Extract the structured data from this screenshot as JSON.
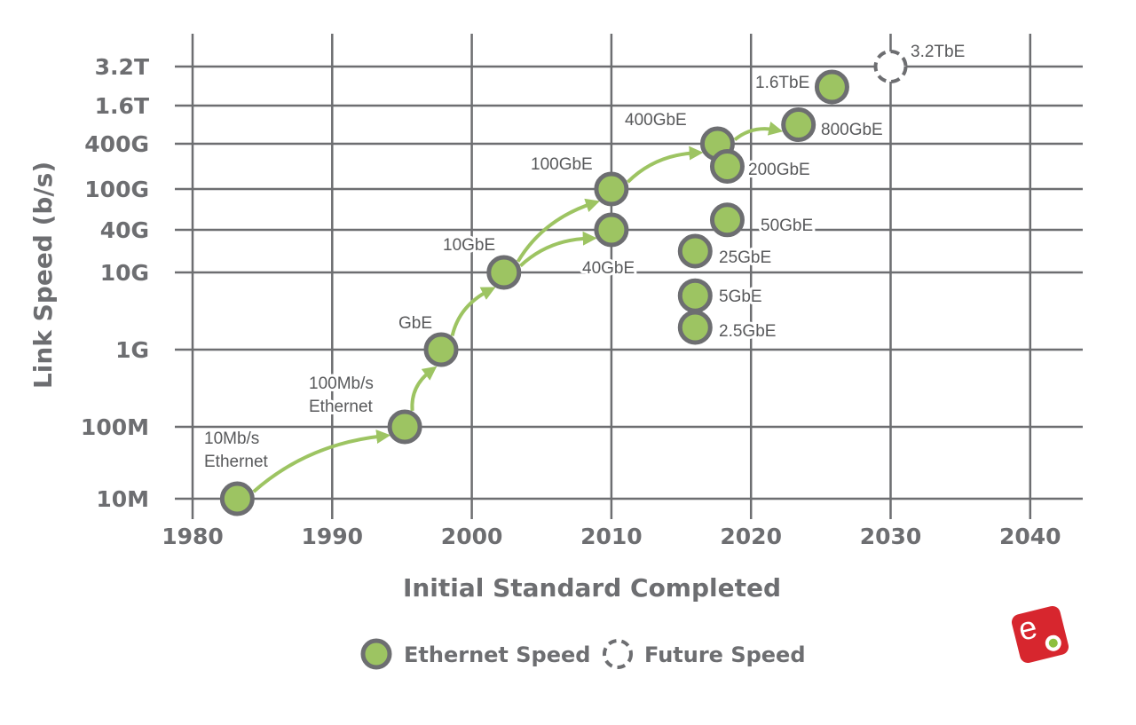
{
  "chart_data": {
    "type": "scatter",
    "title": "",
    "xlabel": "Initial Standard Completed",
    "ylabel": "Link Speed (b/s)",
    "xlim": [
      1980,
      2044
    ],
    "x_ticks": [
      "1980",
      "1990",
      "2000",
      "2010",
      "2020",
      "2030",
      "2040"
    ],
    "y_scale": "log",
    "y_ticks": [
      {
        "label": "10M",
        "value": 10000000.0
      },
      {
        "label": "100M",
        "value": 100000000.0
      },
      {
        "label": "1G",
        "value": 1000000000.0
      },
      {
        "label": "10G",
        "value": 10000000000.0
      },
      {
        "label": "40G",
        "value": 40000000000.0
      },
      {
        "label": "100G",
        "value": 100000000000.0
      },
      {
        "label": "400G",
        "value": 400000000000.0
      },
      {
        "label": "1.6T",
        "value": 1600000000000.0
      },
      {
        "label": "3.2T",
        "value": 3200000000000.0
      }
    ],
    "grid": true,
    "legend_position": "bottom",
    "series": [
      {
        "name": "Ethernet Speed",
        "color": "#9dc462",
        "outline": "#6d6e71",
        "style": "solid",
        "points": [
          {
            "label": [
              "10Mb/s",
              "Ethernet"
            ],
            "x": 1983.2,
            "y": 10000000.0
          },
          {
            "label": [
              "100Mb/s",
              "Ethernet"
            ],
            "x": 1995.2,
            "y": 100000000.0
          },
          {
            "label": [
              "GbE"
            ],
            "x": 1997.8,
            "y": 1000000000.0
          },
          {
            "label": [
              "10GbE"
            ],
            "x": 2002.3,
            "y": 10000000000.0
          },
          {
            "label": [
              "40GbE"
            ],
            "x": 2010,
            "y": 40000000000.0
          },
          {
            "label": [
              "100GbE"
            ],
            "x": 2010,
            "y": 100000000000.0
          },
          {
            "label": [
              "400GbE"
            ],
            "x": 2017.6,
            "y": 400000000000.0
          },
          {
            "label": [
              "200GbE"
            ],
            "x": 2018.3,
            "y": 200000000000.0
          },
          {
            "label": [
              "50GbE"
            ],
            "x": 2018.3,
            "y": 50000000000.0
          },
          {
            "label": [
              "25GbE"
            ],
            "x": 2016,
            "y": 25000000000.0
          },
          {
            "label": [
              "5GbE"
            ],
            "x": 2016,
            "y": 5000000000.0
          },
          {
            "label": [
              "2.5GbE"
            ],
            "x": 2016,
            "y": 2500000000.0
          },
          {
            "label": [
              "800GbE"
            ],
            "x": 2023.4,
            "y": 800000000000.0
          },
          {
            "label": [
              "1.6TbE"
            ],
            "x": 2025.8,
            "y": 1600000000000.0
          }
        ]
      },
      {
        "name": "Future Speed",
        "color": "#ffffff",
        "outline": "#6d6e71",
        "style": "dashed",
        "points": [
          {
            "label": [
              "3.2TbE"
            ],
            "x": 2030,
            "y": 3200000000000.0
          }
        ]
      }
    ],
    "arrows": [
      {
        "from": "10Mb/s Ethernet",
        "to": "100Mb/s Ethernet"
      },
      {
        "from": "100Mb/s Ethernet",
        "to": "GbE"
      },
      {
        "from": "GbE",
        "to": "10GbE"
      },
      {
        "from": "10GbE",
        "to": "100GbE"
      },
      {
        "from": "10GbE",
        "to": "40GbE"
      },
      {
        "from": "100GbE",
        "to": "400GbE"
      },
      {
        "from": "400GbE",
        "to": "800GbE"
      }
    ],
    "arrow_color": "#9dc462"
  },
  "logo": {
    "text": "ea",
    "color": "#d7262e"
  }
}
